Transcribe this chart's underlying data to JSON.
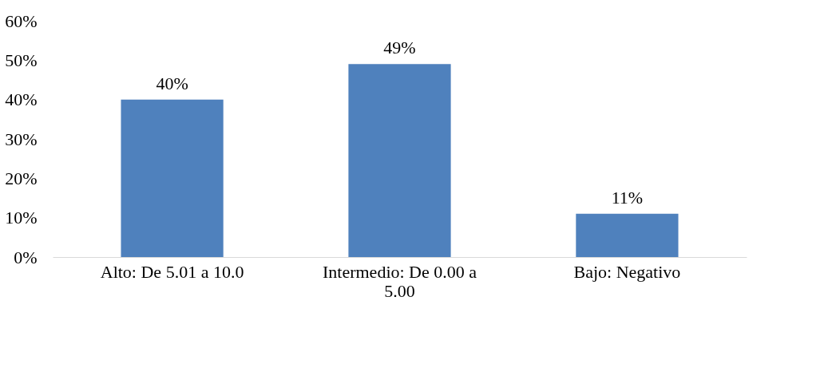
{
  "chart_data": {
    "type": "bar",
    "categories": [
      "Alto: De 5.01 a 10.0",
      "Intermedio: De 0.00 a 5.00",
      "Bajo: Negativo"
    ],
    "values": [
      40,
      49,
      11
    ],
    "color": "#4f81bd",
    "value_labels": [
      "40%",
      "49%",
      "11%"
    ],
    "ylim": [
      0,
      60
    ],
    "yticks": [
      {
        "value": 0,
        "label": "0%"
      },
      {
        "value": 10,
        "label": "10%"
      },
      {
        "value": 20,
        "label": "20%"
      },
      {
        "value": 30,
        "label": "30%"
      },
      {
        "value": 40,
        "label": "40%"
      },
      {
        "value": 50,
        "label": "50%"
      },
      {
        "value": 60,
        "label": "60%"
      }
    ],
    "grid": false
  }
}
